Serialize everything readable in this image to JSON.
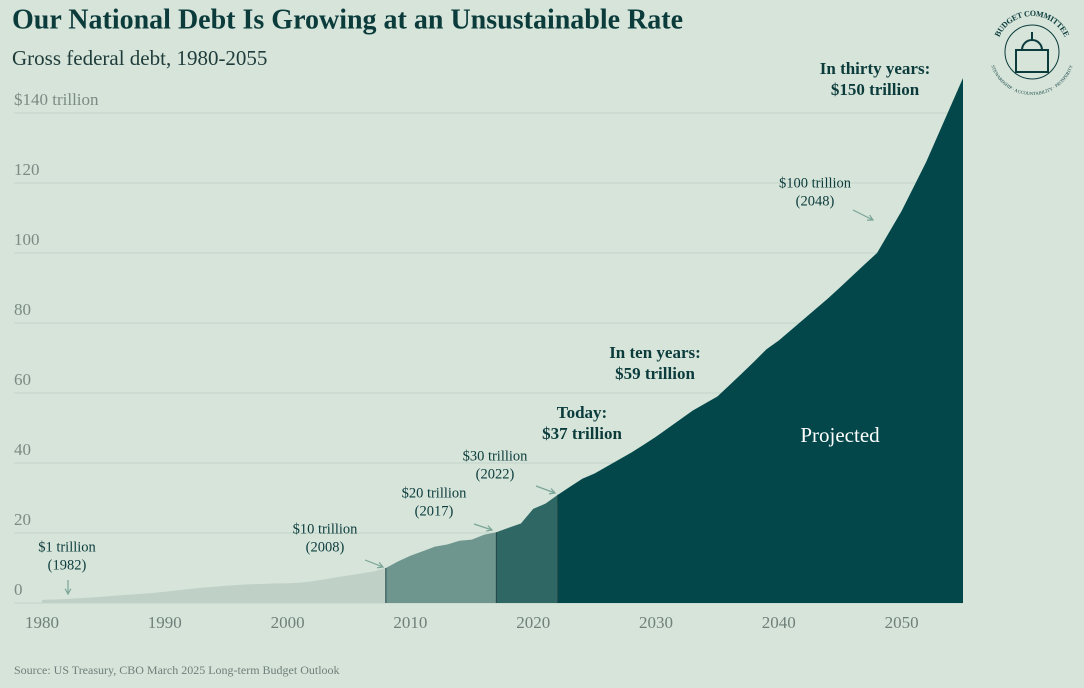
{
  "chart_data": {
    "type": "area",
    "title": "Our National Debt Is Growing at an Unsustainable Rate",
    "subtitle": "Gross federal debt, 1980-2055",
    "source": "Source: US Treasury, CBO March 2025 Long-term Budget Outlook",
    "region_label": "Projected",
    "logo": {
      "title": "BUDGET COMMITTEE",
      "motto": "STEWARDSHIP · ACCOUNTABILITY · PROSPERITY"
    },
    "xlim": [
      1980,
      2055
    ],
    "xticks": [
      1980,
      1990,
      2000,
      2010,
      2020,
      2030,
      2040,
      2050
    ],
    "ylim": [
      0,
      150
    ],
    "yticks": [
      0,
      20,
      40,
      60,
      80,
      100,
      120,
      {
        "value": 140,
        "label": "$140 trillion"
      }
    ],
    "grid": true,
    "series": [
      {
        "color": "#bfd1c7",
        "x": [
          1980,
          1981,
          1982,
          1983,
          1984,
          1985,
          1986,
          1987,
          1988,
          1989,
          1990,
          1991,
          1992,
          1993,
          1994,
          1995,
          1996,
          1997,
          1998,
          1999,
          2000,
          2001,
          2002,
          2003,
          2004,
          2005,
          2006,
          2007,
          2008
        ],
        "values": [
          0.91,
          1.0,
          1.14,
          1.37,
          1.56,
          1.82,
          2.12,
          2.35,
          2.6,
          2.86,
          3.23,
          3.6,
          4.0,
          4.35,
          4.64,
          4.92,
          5.18,
          5.37,
          5.48,
          5.61,
          5.63,
          5.77,
          6.2,
          6.76,
          7.35,
          7.9,
          8.45,
          9.0,
          10.0
        ]
      },
      {
        "color": "#6e968f",
        "x": [
          2008,
          2009,
          2010,
          2011,
          2012,
          2013,
          2014,
          2015,
          2016,
          2017
        ],
        "values": [
          10.0,
          11.9,
          13.5,
          14.8,
          16.1,
          16.7,
          17.8,
          18.1,
          19.5,
          20.2
        ]
      },
      {
        "color": "#2e6764",
        "x": [
          2017,
          2018,
          2019,
          2020,
          2021,
          2022
        ],
        "values": [
          20.2,
          21.5,
          22.7,
          26.9,
          28.4,
          30.9
        ]
      },
      {
        "color": "#03474a",
        "x": [
          2022,
          2023,
          2024,
          2025,
          2026,
          2027,
          2028,
          2029,
          2030,
          2031,
          2032,
          2033,
          2034,
          2035,
          2036,
          2037,
          2038,
          2039,
          2040,
          2041,
          2042,
          2043,
          2044,
          2045,
          2046,
          2047,
          2048,
          2049,
          2050,
          2051,
          2052,
          2053,
          2054,
          2055
        ],
        "values": [
          30.9,
          33.2,
          35.5,
          37,
          39,
          41,
          43,
          45.2,
          47.5,
          50,
          52.5,
          55,
          57,
          59,
          62.3,
          65.6,
          69,
          72.5,
          75,
          78,
          81,
          84,
          87,
          90.2,
          93.5,
          96.8,
          100,
          106,
          112,
          119,
          126,
          134,
          142,
          150
        ]
      }
    ],
    "annotations": [
      {
        "lines": [
          "$1 trillion",
          "(1982)"
        ],
        "style": "normal"
      },
      {
        "lines": [
          "$10 trillion",
          "(2008)"
        ],
        "style": "normal"
      },
      {
        "lines": [
          "$20 trillion",
          "(2017)"
        ],
        "style": "normal"
      },
      {
        "lines": [
          "$30 trillion",
          "(2022)"
        ],
        "style": "normal"
      },
      {
        "lines": [
          "$100 trillion",
          "(2048)"
        ],
        "style": "normal"
      },
      {
        "lines": [
          "Today:",
          "$37 trillion"
        ],
        "style": "bold"
      },
      {
        "lines": [
          "In ten years:",
          "$59 trillion"
        ],
        "style": "bold"
      },
      {
        "lines": [
          "In thirty years:",
          "$150 trillion"
        ],
        "style": "bold"
      }
    ]
  }
}
